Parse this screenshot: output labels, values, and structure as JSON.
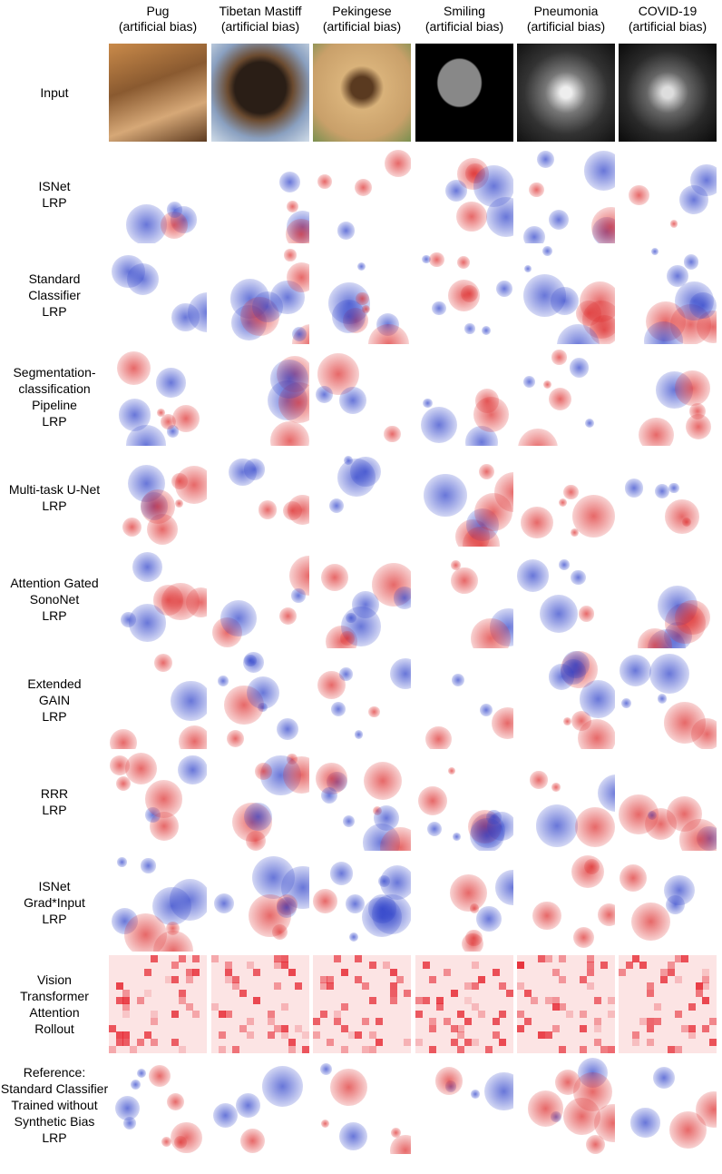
{
  "columns": [
    {
      "title": "Pug",
      "subtitle": "(artificial bias)"
    },
    {
      "title": "Tibetan Mastiff",
      "subtitle": "(artificial bias)"
    },
    {
      "title": "Pekingese",
      "subtitle": "(artificial bias)"
    },
    {
      "title": "Smiling",
      "subtitle": "(artificial bias)"
    },
    {
      "title": "Pneumonia",
      "subtitle": "(artificial bias)"
    },
    {
      "title": "COVID-19",
      "subtitle": "(artificial bias)"
    }
  ],
  "rows": [
    {
      "label": [
        "Input"
      ]
    },
    {
      "label": [
        "ISNet",
        "LRP"
      ]
    },
    {
      "label": [
        "Standard",
        "Classifier",
        "LRP"
      ]
    },
    {
      "label": [
        "Segmentation-",
        "classification",
        "Pipeline",
        "LRP"
      ]
    },
    {
      "label": [
        "Multi-task U-Net",
        "LRP"
      ]
    },
    {
      "label": [
        "Attention Gated",
        "SonoNet",
        "LRP"
      ]
    },
    {
      "label": [
        "Extended",
        "GAIN",
        "LRP"
      ]
    },
    {
      "label": [
        "RRR",
        "LRP"
      ]
    },
    {
      "label": [
        "ISNet",
        "Grad*Input",
        "LRP"
      ]
    },
    {
      "label": [
        "Vision",
        "Transformer",
        "Attention",
        "Rollout"
      ]
    },
    {
      "label": [
        "Reference:",
        "Standard Classifier",
        "Trained without",
        "Synthetic Bias",
        "LRP"
      ]
    }
  ]
}
